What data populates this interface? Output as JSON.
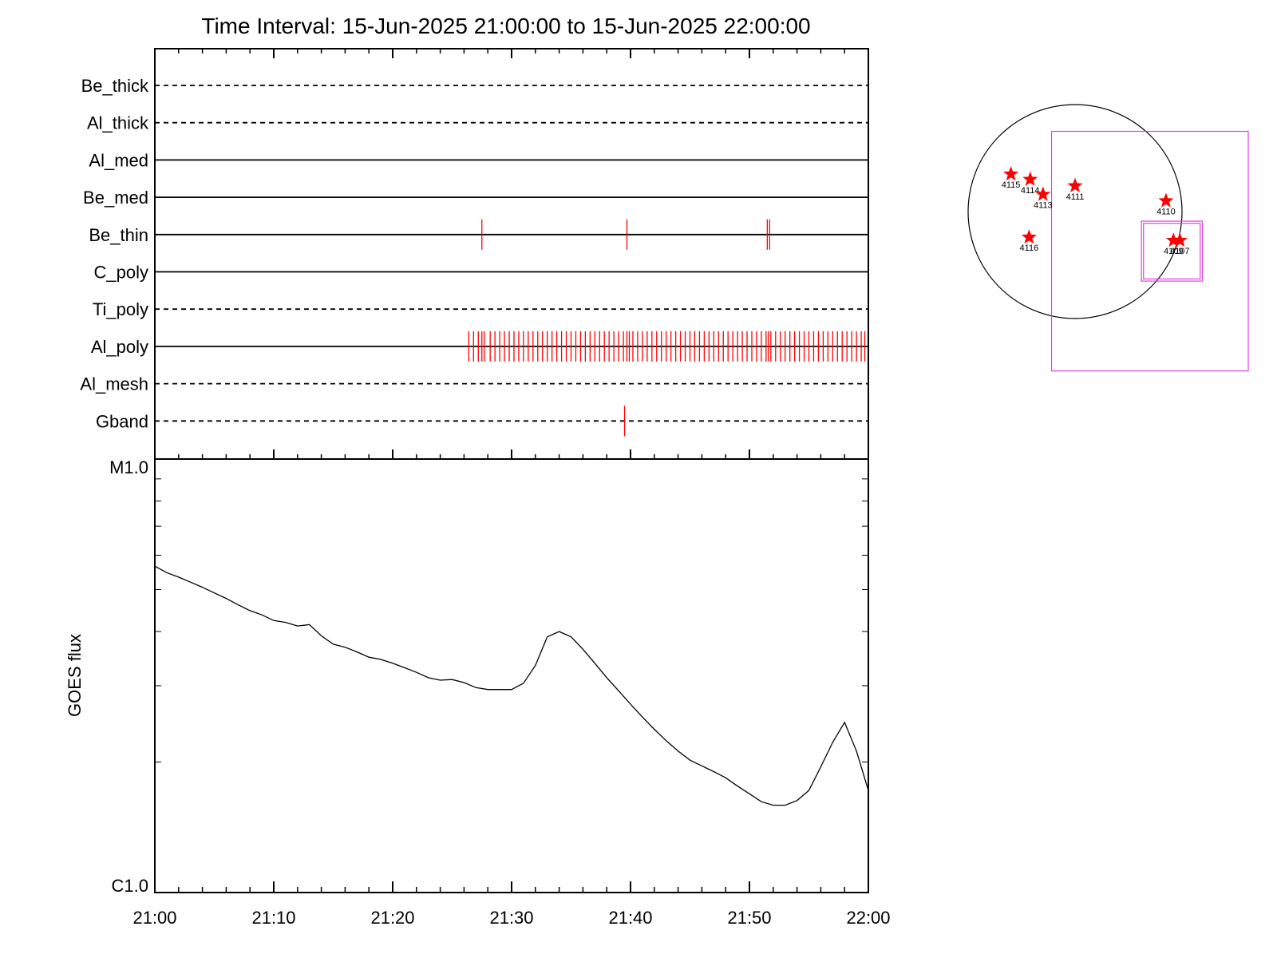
{
  "chart_data": [
    {
      "type": "timeline",
      "title": "Time Interval: 15-Jun-2025 21:00:00 to 15-Jun-2025 22:00:00",
      "x_range": [
        "21:00",
        "22:00"
      ],
      "rows": [
        {
          "name": "Be_thick",
          "style": "dashed",
          "events": []
        },
        {
          "name": "Al_thick",
          "style": "dashed",
          "events": []
        },
        {
          "name": "Al_med",
          "style": "solid",
          "events": []
        },
        {
          "name": "Be_med",
          "style": "solid",
          "events": []
        },
        {
          "name": "Be_thin",
          "style": "solid",
          "events": [
            27.5,
            39.7,
            51.5,
            51.7
          ]
        },
        {
          "name": "C_poly",
          "style": "solid",
          "events": []
        },
        {
          "name": "Ti_poly",
          "style": "dashed",
          "events": []
        },
        {
          "name": "Al_poly",
          "style": "solid",
          "events": [
            26.4,
            26.8,
            27.2,
            27.5,
            27.7,
            28.2,
            28.6,
            29.0,
            29.4,
            29.8,
            30.2,
            30.6,
            31.0,
            31.4,
            31.8,
            32.2,
            32.6,
            33.0,
            33.4,
            33.8,
            34.2,
            34.6,
            35.0,
            35.4,
            35.8,
            36.2,
            36.6,
            37.0,
            37.4,
            37.8,
            38.2,
            38.6,
            39.0,
            39.4,
            39.7,
            39.9,
            40.2,
            40.6,
            41.0,
            41.4,
            41.8,
            42.2,
            42.6,
            43.0,
            43.4,
            43.8,
            44.2,
            44.6,
            45.0,
            45.4,
            45.8,
            46.2,
            46.6,
            47.0,
            47.4,
            47.8,
            48.2,
            48.6,
            49.0,
            49.4,
            49.8,
            50.2,
            50.6,
            51.0,
            51.4,
            51.6,
            51.8,
            52.2,
            52.6,
            53.0,
            53.4,
            53.8,
            54.2,
            54.6,
            55.0,
            55.4,
            55.8,
            56.2,
            56.6,
            57.0,
            57.4,
            57.8,
            58.2,
            58.6,
            59.0,
            59.4,
            59.7
          ]
        },
        {
          "name": "Al_mesh",
          "style": "dashed",
          "events": []
        },
        {
          "name": "Gband",
          "style": "dashed",
          "events": [
            39.5
          ]
        }
      ],
      "colors": {
        "events": "#ff0000",
        "axes": "#000000"
      }
    },
    {
      "type": "line",
      "ylabel": "GOES flux",
      "yscale": "log",
      "y_tick_labels": [
        "M1.0",
        "C1.0"
      ],
      "ylim": [
        1e-06,
        1e-05
      ],
      "x_tick_labels": [
        "21:00",
        "21:10",
        "21:20",
        "21:30",
        "21:40",
        "21:50",
        "22:00"
      ],
      "xlim_minutes": [
        0,
        60
      ],
      "series": [
        {
          "x": [
            0,
            1,
            2,
            3,
            4,
            5,
            6,
            7,
            8,
            9,
            10,
            11,
            12,
            13,
            14,
            15,
            16,
            17,
            18,
            19,
            20,
            21,
            22,
            23,
            24,
            25,
            26,
            27,
            28,
            29,
            30,
            31,
            32,
            33,
            34,
            35,
            36,
            37,
            38,
            39,
            40,
            41,
            42,
            43,
            44,
            45,
            46,
            47,
            48,
            49,
            50,
            51,
            52,
            53,
            54,
            55,
            56,
            57,
            58,
            59,
            60
          ],
          "y": [
            5.66e-06,
            5.47e-06,
            5.34e-06,
            5.2e-06,
            5.06e-06,
            4.91e-06,
            4.77e-06,
            4.61e-06,
            4.47e-06,
            4.37e-06,
            4.24e-06,
            4.2e-06,
            4.12e-06,
            4.15e-06,
            3.91e-06,
            3.74e-06,
            3.68e-06,
            3.59e-06,
            3.49e-06,
            3.45e-06,
            3.38e-06,
            3.3e-06,
            3.22e-06,
            3.13e-06,
            3.09e-06,
            3.1e-06,
            3.05e-06,
            2.97e-06,
            2.94e-06,
            2.94e-06,
            2.94e-06,
            3.04e-06,
            3.34e-06,
            3.89e-06,
            4e-06,
            3.89e-06,
            3.64e-06,
            3.38e-06,
            3.13e-06,
            2.92e-06,
            2.72e-06,
            2.54e-06,
            2.38e-06,
            2.24e-06,
            2.12e-06,
            2.02e-06,
            1.96e-06,
            1.9e-06,
            1.84e-06,
            1.76e-06,
            1.69e-06,
            1.62e-06,
            1.59e-06,
            1.59e-06,
            1.63e-06,
            1.72e-06,
            1.95e-06,
            2.22e-06,
            2.47e-06,
            2.12e-06,
            1.72e-06
          ]
        }
      ]
    },
    {
      "type": "scatter",
      "units": "solar-disk-fraction",
      "points": [
        {
          "label": "4115",
          "x": -0.6,
          "y": 0.35
        },
        {
          "label": "4114",
          "x": -0.42,
          "y": 0.3
        },
        {
          "label": "4113",
          "x": -0.3,
          "y": 0.16
        },
        {
          "label": "4111",
          "x": 0.0,
          "y": 0.24
        },
        {
          "label": "4110",
          "x": 0.85,
          "y": 0.1
        },
        {
          "label": "4116",
          "x": -0.43,
          "y": -0.24
        },
        {
          "label": "4109",
          "x": 0.92,
          "y": -0.27
        },
        {
          "label": "4107",
          "x": 0.98,
          "y": -0.27
        }
      ],
      "fields_of_view": [
        {
          "x0": -0.22,
          "y0": 0.75,
          "x1": 1.62,
          "y1": -1.49
        },
        {
          "x0": 0.62,
          "y0": -0.09,
          "x1": 1.19,
          "y1": -0.65
        },
        {
          "x0": 0.64,
          "y0": -0.11,
          "x1": 1.17,
          "y1": -0.63
        }
      ],
      "colors": {
        "marker": "#ff0000",
        "fov": "#e040e0",
        "disk": "#000000"
      }
    }
  ]
}
